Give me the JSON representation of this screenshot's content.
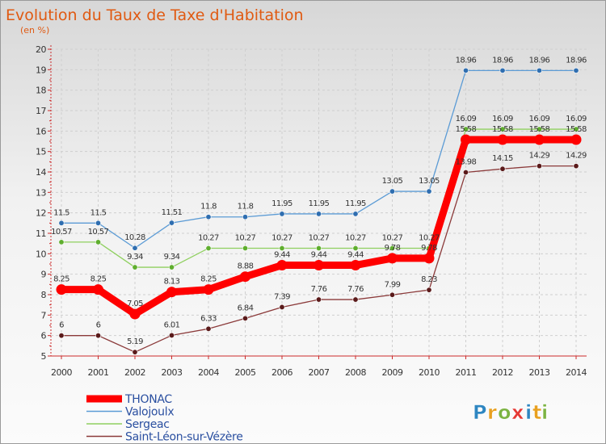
{
  "chart_data": {
    "type": "line",
    "title": "Evolution du Taux de Taxe d'Habitation",
    "subtitle": "(en %)",
    "x": [
      "2000",
      "2001",
      "2002",
      "2003",
      "2004",
      "2005",
      "2006",
      "2007",
      "2008",
      "2009",
      "2010",
      "2011",
      "2012",
      "2013",
      "2014"
    ],
    "ylim": [
      5,
      20
    ],
    "yticks": [
      5,
      6,
      7,
      8,
      9,
      10,
      11,
      12,
      13,
      14,
      15,
      16,
      17,
      18,
      19,
      20
    ],
    "grid": true,
    "legend_position": "bottom-left",
    "series": [
      {
        "name": "Valojoulx",
        "color": "#5b9bd5",
        "point_color": "#2f6eb0",
        "values": [
          11.5,
          11.5,
          10.28,
          11.51,
          11.8,
          11.8,
          11.95,
          11.95,
          11.95,
          13.05,
          13.05,
          18.96,
          18.96,
          18.96,
          18.96
        ],
        "labels": [
          "11.5",
          "11.5",
          "10.28",
          "11.51",
          "11.8",
          "11.8",
          "11.95",
          "11.95",
          "11.95",
          "13.05",
          "13.05",
          "18.96",
          "18.96",
          "18.96",
          "18.96"
        ]
      },
      {
        "name": "Sergeac",
        "color": "#8fd05f",
        "point_color": "#5fae2e",
        "values": [
          10.57,
          10.57,
          9.34,
          9.34,
          10.27,
          10.27,
          10.27,
          10.27,
          10.27,
          10.27,
          10.27,
          16.09,
          16.09,
          16.09,
          16.09
        ],
        "labels": [
          "10.57",
          "10.57",
          "9.34",
          "9.34",
          "10.27",
          "10.27",
          "10.27",
          "10.27",
          "10.27",
          "10.27",
          "10.27",
          "16.09",
          "16.09",
          "16.09",
          "16.09"
        ]
      },
      {
        "name": "Saint-Léon-sur-Vézère",
        "color": "#8b3a3a",
        "point_color": "#5a1a1a",
        "values": [
          6,
          6,
          5.19,
          6.01,
          6.33,
          6.84,
          7.39,
          7.76,
          7.76,
          7.99,
          8.23,
          13.98,
          14.15,
          14.29,
          14.29
        ],
        "labels": [
          "6",
          "6",
          "5.19",
          "6.01",
          "6.33",
          "6.84",
          "7.39",
          "7.76",
          "7.76",
          "7.99",
          "8.23",
          "13.98",
          "14.15",
          "14.29",
          "14.29"
        ]
      },
      {
        "name": "THONAC",
        "color": "#ff0000",
        "point_color": "#ff0000",
        "thick": true,
        "values": [
          8.25,
          8.25,
          7.05,
          8.13,
          8.25,
          8.88,
          9.44,
          9.44,
          9.44,
          9.78,
          9.78,
          15.58,
          15.58,
          15.58,
          15.58
        ],
        "labels": [
          "8.25",
          "8.25",
          "7.05",
          "8.13",
          "8.25",
          "8.88",
          "9.44",
          "9.44",
          "9.44",
          "9.78",
          "9.78",
          "15.58",
          "15.58",
          "15.58",
          "15.58"
        ]
      }
    ],
    "legend_order": [
      "THONAC",
      "Valojoulx",
      "Sergeac",
      "Saint-Léon-sur-Vézère"
    ]
  },
  "brand": {
    "letters": [
      "P",
      "r",
      "o",
      "x",
      "i",
      "t",
      "i"
    ],
    "colors": [
      "#2e86c1",
      "#e8a020",
      "#7cb342",
      "#e53935",
      "#2e86c1",
      "#e8a020",
      "#7cb342"
    ]
  }
}
